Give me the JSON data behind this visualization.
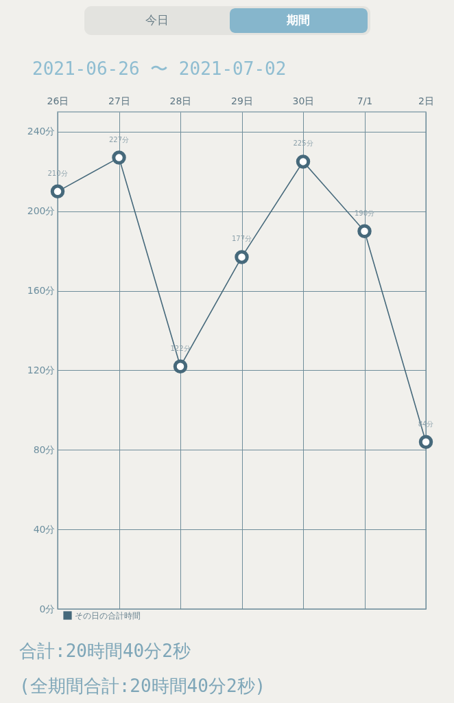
{
  "chart_data": {
    "type": "line",
    "title": "2021-06-26 〜 2021-07-02",
    "categories": [
      "26日",
      "27日",
      "28日",
      "29日",
      "30日",
      "7/1",
      "2日"
    ],
    "series": [
      {
        "name": "その日の合計時間",
        "color": "#46697b",
        "values": [
          210,
          227,
          122,
          177,
          225,
          190,
          84
        ],
        "value_labels": [
          "210分",
          "227分",
          "122分",
          "177分",
          "225分",
          "190分",
          "84分"
        ]
      }
    ],
    "ylim": [
      0,
      250
    ],
    "yticks": [
      {
        "value": 0,
        "label": "0分"
      },
      {
        "value": 40,
        "label": "40分"
      },
      {
        "value": 80,
        "label": "80分"
      },
      {
        "value": 120,
        "label": "120分"
      },
      {
        "value": 160,
        "label": "160分"
      },
      {
        "value": 200,
        "label": "200分"
      },
      {
        "value": 240,
        "label": "240分"
      }
    ],
    "grid": true,
    "legend": "bottom left",
    "marker": "circle",
    "line_style": "solid",
    "annotations": [
      "今日",
      "期間",
      "合計:20時間40分2秒",
      "(全期間合計:20時間40分2秒)"
    ]
  }
}
